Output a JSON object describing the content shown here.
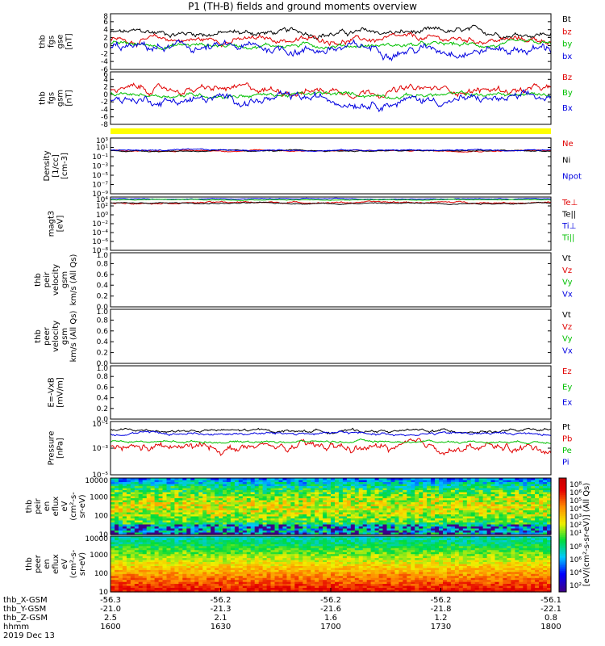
{
  "title": "P1 (TH-B) fields and ground moments overview",
  "colors": {
    "black": "#000000",
    "red": "#e00000",
    "green": "#00c000",
    "blue": "#0000e0",
    "yellow": "#ffff00"
  },
  "chart_data": [
    {
      "id": "fgs_gse",
      "type": "line",
      "ylabel": [
        "thb",
        "fgs",
        "gse",
        "[nT]"
      ],
      "yticks": [
        "8",
        "6",
        "4",
        "2",
        "0",
        "-2",
        "-4",
        "-6"
      ],
      "ylim": [
        -7,
        9
      ],
      "series": [
        {
          "name": "Bt",
          "color": "black",
          "base": 3.5,
          "amp": 2.0
        },
        {
          "name": "bz",
          "color": "red",
          "base": 1.5,
          "amp": 2.0
        },
        {
          "name": "by",
          "color": "green",
          "base": 0,
          "amp": 1.5
        },
        {
          "name": "bx",
          "color": "blue",
          "base": -1.0,
          "amp": 3.0
        }
      ]
    },
    {
      "id": "fgs_gsm",
      "type": "line",
      "ylabel": [
        "thb",
        "fgs",
        "gsm",
        "[nT]"
      ],
      "yticks": [
        "6",
        "4",
        "2",
        "0",
        "-2",
        "-4",
        "-6",
        "-8"
      ],
      "ylim": [
        -9,
        7
      ],
      "series": [
        {
          "name": "Bz",
          "color": "red",
          "base": 1.5,
          "amp": 2.5
        },
        {
          "name": "By",
          "color": "green",
          "base": 0,
          "amp": 1.5
        },
        {
          "name": "Bx",
          "color": "blue",
          "base": -1.5,
          "amp": 3.0
        }
      ]
    },
    {
      "id": "density",
      "type": "line",
      "ylabel": [
        "Density",
        "[1/cc]",
        "[cm-3]"
      ],
      "yticks": [
        "10³",
        "10¹",
        "10⁻¹",
        "10⁻³",
        "10⁻⁵",
        "10⁻⁷",
        "10⁻⁹"
      ],
      "scale": "log",
      "series": [
        {
          "name": "Ne",
          "color": "red",
          "base": 0.3,
          "amp": 0.3
        },
        {
          "name": "Ni",
          "color": "black",
          "base": 0.25,
          "amp": 0.3
        },
        {
          "name": "Npot",
          "color": "blue",
          "base": 0.4,
          "amp": 0.3
        }
      ]
    },
    {
      "id": "temp",
      "type": "line",
      "ylabel": [
        "magt3",
        "[eV]"
      ],
      "yticks": [
        "10⁴",
        "10²",
        "10⁰",
        "10⁻²",
        "10⁻⁴",
        "10⁻⁶",
        "10⁻⁸"
      ],
      "scale": "log",
      "series": [
        {
          "name": "Te⊥",
          "color": "red",
          "base": 2.8,
          "amp": 0.4
        },
        {
          "name": "Te||",
          "color": "black",
          "base": 2.6,
          "amp": 0.3
        },
        {
          "name": "Ti⊥",
          "color": "blue",
          "base": 3.6,
          "amp": 0.2
        },
        {
          "name": "Ti||",
          "color": "green",
          "base": 3.4,
          "amp": 0.2
        }
      ]
    },
    {
      "id": "peir",
      "type": "line",
      "ylabel": [
        "thb",
        "peir",
        "velocity",
        "gsm",
        "km/s (All Qs)"
      ],
      "yticks": [
        "1.0",
        "0.8",
        "0.6",
        "0.4",
        "0.2",
        "0.0"
      ],
      "ylim": [
        0,
        1
      ],
      "series": [
        {
          "name": "Vt",
          "color": "black"
        },
        {
          "name": "Vz",
          "color": "red"
        },
        {
          "name": "Vy",
          "color": "green"
        },
        {
          "name": "Vx",
          "color": "blue"
        }
      ]
    },
    {
      "id": "peer",
      "type": "line",
      "ylabel": [
        "thb",
        "peer",
        "velocity",
        "gsm",
        "km/s (All Qs)"
      ],
      "yticks": [
        "1.0",
        "0.8",
        "0.6",
        "0.4",
        "0.2",
        "0.0"
      ],
      "ylim": [
        0,
        1
      ],
      "series": [
        {
          "name": "Vt",
          "color": "black"
        },
        {
          "name": "Vz",
          "color": "red"
        },
        {
          "name": "Vy",
          "color": "green"
        },
        {
          "name": "Vx",
          "color": "blue"
        }
      ]
    },
    {
      "id": "efield",
      "type": "line",
      "ylabel": [
        "E=-VxB",
        "[mV/m]"
      ],
      "yticks": [
        "1.0",
        "0.8",
        "0.6",
        "0.4",
        "0.2",
        "0.0"
      ],
      "ylim": [
        0,
        1
      ],
      "series": [
        {
          "name": "Ez",
          "color": "red"
        },
        {
          "name": "Ey",
          "color": "green"
        },
        {
          "name": "Ex",
          "color": "blue"
        }
      ]
    },
    {
      "id": "pressure",
      "type": "line",
      "ylabel": [
        "Pressure",
        "[nPa]"
      ],
      "yticks": [
        "10⁻¹",
        "10⁻³",
        "10⁻⁵"
      ],
      "scale": "log",
      "series": [
        {
          "name": "Pt",
          "color": "black",
          "base": -1.7,
          "amp": 0.25
        },
        {
          "name": "Pb",
          "color": "red",
          "base": -3.0,
          "amp": 0.7
        },
        {
          "name": "Pe",
          "color": "green",
          "base": -2.5,
          "amp": 0.2
        },
        {
          "name": "Pi",
          "color": "blue",
          "base": -1.9,
          "amp": 0.25
        }
      ]
    },
    {
      "id": "peir_spec",
      "type": "heatmap",
      "ylabel": [
        "thb",
        "peir",
        "en",
        "eflux",
        "eV",
        "(cm²-s-",
        "sr-eV)"
      ],
      "yticks": [
        "10000",
        "1000",
        "100",
        "10"
      ]
    },
    {
      "id": "peer_spec",
      "type": "heatmap",
      "ylabel": [
        "thb",
        "peer",
        "en",
        "eflux",
        "eV",
        "(cm²-s-",
        "sr-eV)"
      ],
      "yticks": [
        "10000",
        "1000",
        "100",
        "10"
      ]
    }
  ],
  "colorbar": {
    "label": "[eV/(cm²-s-sr-eV)] (All Qs)",
    "ticks_top": [
      "10⁸",
      "10⁶",
      "10⁵",
      "10⁴",
      "10³",
      "10²",
      "10¹"
    ],
    "ticks_bottom": [
      "10⁸",
      "10⁶",
      "10⁴",
      "10²"
    ]
  },
  "xaxis": {
    "rows": [
      {
        "label": "thb_X-GSM",
        "values": [
          "-56.3",
          "-56.2",
          "-56.2",
          "-56.2",
          "-56.1"
        ]
      },
      {
        "label": "thb_Y-GSM",
        "values": [
          "-21.0",
          "-21.3",
          "-21.6",
          "-21.8",
          "-22.1"
        ]
      },
      {
        "label": "thb_Z-GSM",
        "values": [
          "2.5",
          "2.1",
          "1.6",
          "1.2",
          "0.8"
        ]
      },
      {
        "label": "hhmm",
        "values": [
          "1600",
          "1630",
          "1700",
          "1730",
          "1800"
        ]
      }
    ],
    "date": "2019 Dec 13"
  }
}
